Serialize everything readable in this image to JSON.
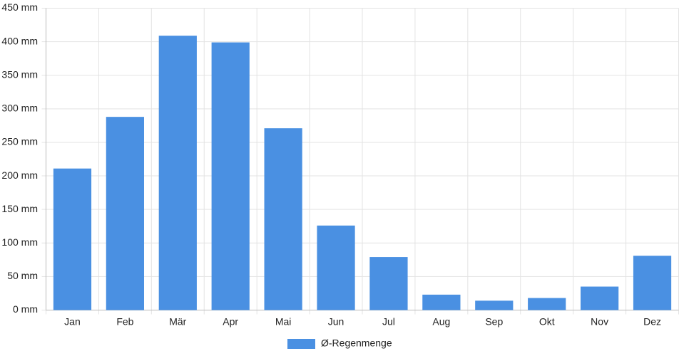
{
  "chart_data": {
    "type": "bar",
    "categories": [
      "Jan",
      "Feb",
      "Mär",
      "Apr",
      "Mai",
      "Jun",
      "Jul",
      "Aug",
      "Sep",
      "Okt",
      "Nov",
      "Dez"
    ],
    "series": [
      {
        "name": "Ø-Regenmenge",
        "color": "#4a90e2",
        "values": [
          211,
          288,
          409,
          399,
          271,
          126,
          79,
          23,
          14,
          18,
          35,
          81
        ]
      }
    ],
    "ylim": [
      0,
      450
    ],
    "yticks": [
      {
        "value": 0,
        "label": "0 mm"
      },
      {
        "value": 50,
        "label": "50 mm"
      },
      {
        "value": 100,
        "label": "100 mm"
      },
      {
        "value": 150,
        "label": "150 mm"
      },
      {
        "value": 200,
        "label": "200 mm"
      },
      {
        "value": 250,
        "label": "250 mm"
      },
      {
        "value": 300,
        "label": "300 mm"
      },
      {
        "value": 350,
        "label": "350 mm"
      },
      {
        "value": 400,
        "label": "400 mm"
      },
      {
        "value": 450,
        "label": "450 mm"
      }
    ],
    "grid": true,
    "legend": "bottom"
  }
}
